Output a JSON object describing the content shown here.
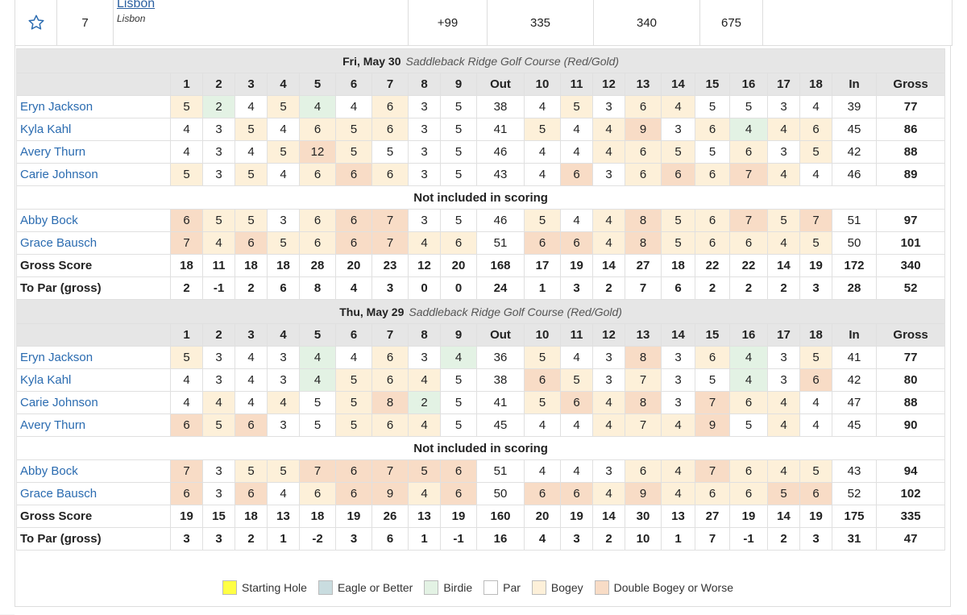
{
  "team": {
    "position": "7",
    "name": "Lisbon",
    "subtitle": "Lisbon",
    "to_par": "+99",
    "round1": "335",
    "round2": "340",
    "total": "675"
  },
  "legend": [
    {
      "label": "Starting Hole",
      "color": "#ffff44"
    },
    {
      "label": "Eagle or Better",
      "color": "#c9dcdf"
    },
    {
      "label": "Birdie",
      "color": "#e3f2e4"
    },
    {
      "label": "Par",
      "color": "#ffffff"
    },
    {
      "label": "Bogey",
      "color": "#fdf0d9"
    },
    {
      "label": "Double Bogey or Worse",
      "color": "#f8dcc6"
    }
  ],
  "header_cols": [
    "1",
    "2",
    "3",
    "4",
    "5",
    "6",
    "7",
    "8",
    "9",
    "Out",
    "10",
    "11",
    "12",
    "13",
    "14",
    "15",
    "16",
    "17",
    "18",
    "In",
    "Gross"
  ],
  "not_included_label": "Not included in scoring",
  "rounds": [
    {
      "date": "Fri, May 30",
      "course": "Saddleback Ridge Golf Course (Red/Gold)",
      "players": [
        {
          "name": "Eryn Jackson",
          "scores": [
            "5",
            "2",
            "4",
            "5",
            "4",
            "4",
            "6",
            "3",
            "5",
            "38",
            "4",
            "5",
            "3",
            "6",
            "4",
            "5",
            "5",
            "3",
            "4",
            "39",
            "77"
          ],
          "cls": [
            "b",
            "br",
            "",
            "b",
            "br",
            "",
            "b",
            "",
            "",
            "",
            "",
            "b",
            "",
            "b",
            "b",
            "",
            "",
            "",
            ""
          ]
        },
        {
          "name": "Kyla Kahl",
          "scores": [
            "4",
            "3",
            "5",
            "4",
            "6",
            "5",
            "6",
            "3",
            "5",
            "41",
            "5",
            "4",
            "4",
            "9",
            "3",
            "6",
            "4",
            "4",
            "6",
            "45",
            "86"
          ],
          "cls": [
            "",
            "",
            "b",
            "",
            "b",
            "b",
            "b",
            "",
            "",
            "",
            "b",
            "",
            "b",
            "d",
            "",
            "b",
            "br",
            "b",
            "b"
          ]
        },
        {
          "name": "Avery Thurn",
          "scores": [
            "4",
            "3",
            "4",
            "5",
            "12",
            "5",
            "5",
            "3",
            "5",
            "46",
            "4",
            "4",
            "4",
            "6",
            "5",
            "5",
            "6",
            "3",
            "5",
            "42",
            "88"
          ],
          "cls": [
            "",
            "",
            "",
            "b",
            "d",
            "b",
            "",
            "",
            "",
            "",
            "",
            "",
            "b",
            "b",
            "b",
            "",
            "b",
            "",
            "b"
          ]
        },
        {
          "name": "Carie Johnson",
          "scores": [
            "5",
            "3",
            "5",
            "4",
            "6",
            "6",
            "6",
            "3",
            "5",
            "43",
            "4",
            "6",
            "3",
            "6",
            "6",
            "6",
            "7",
            "4",
            "4",
            "46",
            "89"
          ],
          "cls": [
            "b",
            "",
            "b",
            "",
            "b",
            "d",
            "b",
            "",
            "",
            "",
            "",
            "d",
            "",
            "b",
            "d",
            "b",
            "d",
            "b",
            ""
          ]
        }
      ],
      "extras": [
        {
          "name": "Abby Bock",
          "scores": [
            "6",
            "5",
            "5",
            "3",
            "6",
            "6",
            "7",
            "3",
            "5",
            "46",
            "5",
            "4",
            "4",
            "8",
            "5",
            "6",
            "7",
            "5",
            "7",
            "51",
            "97"
          ],
          "cls": [
            "d",
            "b",
            "b",
            "",
            "b",
            "d",
            "d",
            "",
            "",
            "",
            "b",
            "",
            "b",
            "d",
            "b",
            "b",
            "d",
            "b",
            "d"
          ]
        },
        {
          "name": "Grace Bausch",
          "scores": [
            "7",
            "4",
            "6",
            "5",
            "6",
            "6",
            "7",
            "4",
            "6",
            "51",
            "6",
            "6",
            "4",
            "8",
            "5",
            "6",
            "6",
            "4",
            "5",
            "50",
            "101"
          ],
          "cls": [
            "d",
            "b",
            "d",
            "b",
            "b",
            "d",
            "d",
            "b",
            "b",
            "",
            "d",
            "d",
            "b",
            "d",
            "b",
            "b",
            "b",
            "b",
            "b"
          ]
        }
      ],
      "gross": {
        "label": "Gross Score",
        "scores": [
          "18",
          "11",
          "18",
          "18",
          "28",
          "20",
          "23",
          "12",
          "20",
          "168",
          "17",
          "19",
          "14",
          "27",
          "18",
          "22",
          "22",
          "14",
          "19",
          "172",
          "340"
        ]
      },
      "topar": {
        "label": "To Par (gross)",
        "scores": [
          "2",
          "-1",
          "2",
          "6",
          "8",
          "4",
          "3",
          "0",
          "0",
          "24",
          "1",
          "3",
          "2",
          "7",
          "6",
          "2",
          "2",
          "2",
          "3",
          "28",
          "52"
        ]
      }
    },
    {
      "date": "Thu, May 29",
      "course": "Saddleback Ridge Golf Course (Red/Gold)",
      "players": [
        {
          "name": "Eryn Jackson",
          "scores": [
            "5",
            "3",
            "4",
            "3",
            "4",
            "4",
            "6",
            "3",
            "4",
            "36",
            "5",
            "4",
            "3",
            "8",
            "3",
            "6",
            "4",
            "3",
            "5",
            "41",
            "77"
          ],
          "cls": [
            "b",
            "",
            "",
            "",
            "br",
            "",
            "b",
            "",
            "br",
            "",
            "b",
            "",
            "",
            "d",
            "",
            "b",
            "br",
            "",
            "b"
          ]
        },
        {
          "name": "Kyla Kahl",
          "scores": [
            "4",
            "3",
            "4",
            "3",
            "4",
            "5",
            "6",
            "4",
            "5",
            "38",
            "6",
            "5",
            "3",
            "7",
            "3",
            "5",
            "4",
            "3",
            "6",
            "42",
            "80"
          ],
          "cls": [
            "",
            "",
            "",
            "",
            "br",
            "b",
            "b",
            "b",
            "",
            "",
            "d",
            "b",
            "",
            "b",
            "",
            "",
            "br",
            "",
            "d"
          ]
        },
        {
          "name": "Carie Johnson",
          "scores": [
            "4",
            "4",
            "4",
            "4",
            "5",
            "5",
            "8",
            "2",
            "5",
            "41",
            "5",
            "6",
            "4",
            "8",
            "3",
            "7",
            "6",
            "4",
            "4",
            "47",
            "88"
          ],
          "cls": [
            "",
            "b",
            "",
            "b",
            "",
            "b",
            "d",
            "br",
            "",
            "",
            "b",
            "d",
            "b",
            "d",
            "",
            "d",
            "b",
            "b",
            ""
          ]
        },
        {
          "name": "Avery Thurn",
          "scores": [
            "6",
            "5",
            "6",
            "3",
            "5",
            "5",
            "6",
            "4",
            "5",
            "45",
            "4",
            "4",
            "4",
            "7",
            "4",
            "9",
            "5",
            "4",
            "4",
            "45",
            "90"
          ],
          "cls": [
            "d",
            "b",
            "d",
            "",
            "",
            "b",
            "b",
            "b",
            "",
            "",
            "",
            "",
            "b",
            "b",
            "b",
            "d",
            "",
            "b",
            ""
          ]
        }
      ],
      "extras": [
        {
          "name": "Abby Bock",
          "scores": [
            "7",
            "3",
            "5",
            "5",
            "7",
            "6",
            "7",
            "5",
            "6",
            "51",
            "4",
            "4",
            "3",
            "6",
            "4",
            "7",
            "6",
            "4",
            "5",
            "43",
            "94"
          ],
          "cls": [
            "d",
            "",
            "b",
            "b",
            "d",
            "d",
            "d",
            "d",
            "d",
            "",
            "",
            "",
            "",
            "b",
            "b",
            "d",
            "b",
            "b",
            "b"
          ]
        },
        {
          "name": "Grace Bausch",
          "scores": [
            "6",
            "3",
            "6",
            "4",
            "6",
            "6",
            "9",
            "4",
            "6",
            "50",
            "6",
            "6",
            "4",
            "9",
            "4",
            "6",
            "6",
            "5",
            "6",
            "52",
            "102"
          ],
          "cls": [
            "d",
            "",
            "d",
            "",
            "b",
            "d",
            "d",
            "b",
            "d",
            "",
            "d",
            "d",
            "b",
            "d",
            "b",
            "b",
            "b",
            "d",
            "d"
          ]
        }
      ],
      "gross": {
        "label": "Gross Score",
        "scores": [
          "19",
          "15",
          "18",
          "13",
          "18",
          "19",
          "26",
          "13",
          "19",
          "160",
          "20",
          "19",
          "14",
          "30",
          "13",
          "27",
          "19",
          "14",
          "19",
          "175",
          "335"
        ]
      },
      "topar": {
        "label": "To Par (gross)",
        "scores": [
          "3",
          "3",
          "2",
          "1",
          "-2",
          "3",
          "6",
          "1",
          "-1",
          "16",
          "4",
          "3",
          "2",
          "10",
          "1",
          "7",
          "-1",
          "2",
          "3",
          "31",
          "47"
        ]
      }
    }
  ]
}
